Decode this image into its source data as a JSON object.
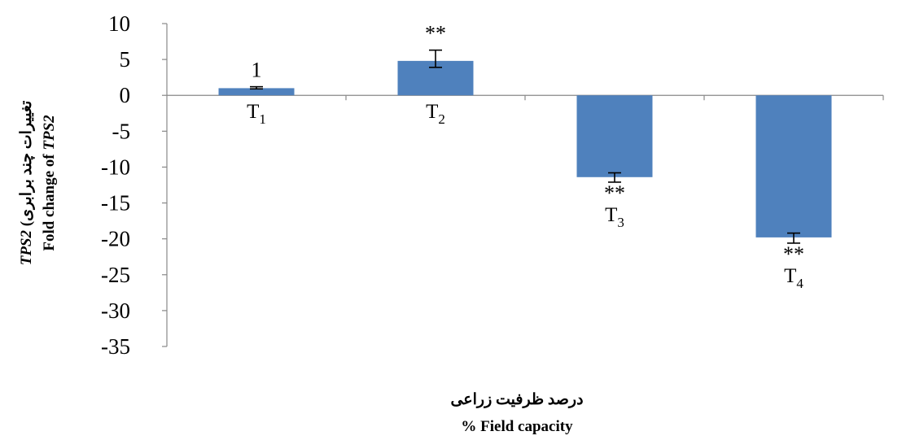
{
  "chart_data": {
    "type": "bar",
    "categories": [
      {
        "base": "T",
        "sub": "1"
      },
      {
        "base": "T",
        "sub": "2"
      },
      {
        "base": "T",
        "sub": "3"
      },
      {
        "base": "T",
        "sub": "4"
      }
    ],
    "values": [
      1,
      4.8,
      -11.4,
      -19.8
    ],
    "error_low": [
      0.9,
      3.9,
      -12.1,
      -20.6
    ],
    "error_high": [
      1.2,
      6.3,
      -10.8,
      -19.2
    ],
    "annotations": [
      "1",
      "**",
      "**",
      "**"
    ],
    "ylim": [
      -35,
      10
    ],
    "yticks": [
      "10",
      "5",
      "0",
      "-5",
      "-10",
      "-15",
      "-20",
      "-25",
      "-30",
      "-35"
    ],
    "bar_color": "#4f81bd",
    "grid": false,
    "xlabel_fa": "درصد ظرفیت زراعی",
    "xlabel_en": "% Field capacity",
    "ylabel_line1": {
      "italic": "TPS2",
      "rest": " (تغییرات چند برابری"
    },
    "ylabel_line2": {
      "rest": "Fold change of ",
      "italic": "TPS2"
    }
  }
}
